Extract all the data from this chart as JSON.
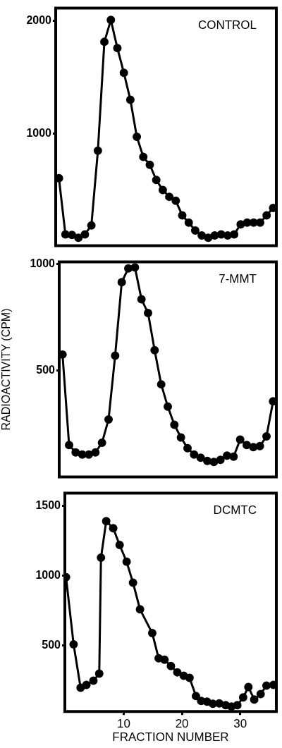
{
  "chart_data": [
    {
      "type": "line",
      "title": "CONTROL",
      "marker": "circle",
      "line_style": "solid",
      "grid": false,
      "tick_labels": "y",
      "ylim": [
        0,
        2115
      ],
      "yticks": [
        1000,
        2000
      ],
      "categories": [
        null,
        null,
        null,
        null,
        null,
        null,
        null,
        null,
        null,
        null,
        null,
        null,
        null,
        null,
        null,
        null,
        null,
        null,
        null,
        null,
        null,
        null,
        null,
        null,
        null,
        null,
        null,
        null,
        null,
        null,
        null,
        null,
        null,
        null
      ],
      "series": [
        {
          "color": "#000000",
          "values": [
            600,
            100,
            95,
            70,
            100,
            180,
            845,
            1815,
            2010,
            1760,
            1540,
            1300,
            970,
            790,
            720,
            585,
            495,
            435,
            400,
            270,
            205,
            135,
            90,
            70,
            90,
            100,
            90,
            100,
            190,
            205,
            205,
            205,
            270,
            335
          ]
        }
      ]
    },
    {
      "type": "line",
      "title": "7-MMT",
      "ylabel": "RADIOACTIVITY (CPM)",
      "marker": "circle",
      "line_style": "solid",
      "grid": false,
      "tick_labels": "y",
      "ylim": [
        0,
        1010
      ],
      "yticks": [
        500,
        1000
      ],
      "categories": [
        null,
        null,
        null,
        null,
        null,
        null,
        null,
        null,
        null,
        null,
        null,
        null,
        null,
        null,
        null,
        null,
        null,
        null,
        null,
        null,
        null,
        null,
        null,
        null,
        null,
        null,
        null,
        null,
        null,
        null,
        null,
        null,
        null
      ],
      "series": [
        {
          "color": "#000000",
          "values": [
            575,
            150,
            115,
            105,
            105,
            115,
            160,
            270,
            570,
            915,
            980,
            985,
            835,
            770,
            595,
            435,
            330,
            245,
            185,
            135,
            105,
            90,
            75,
            70,
            80,
            100,
            95,
            175,
            150,
            140,
            145,
            190,
            355
          ]
        }
      ]
    },
    {
      "type": "line",
      "title": "DCMTC",
      "xlabel": "FRACTION NUMBER",
      "marker": "circle",
      "line_style": "solid",
      "grid": false,
      "xlim": [
        -0.1,
        36.2
      ],
      "xticks": [
        10,
        20,
        30
      ],
      "ylim": [
        30,
        1590
      ],
      "yticks": [
        500,
        1000,
        1500
      ],
      "series": [
        {
          "color": "#000000",
          "x": [
            0.1,
            1.4,
            2.6,
            3.6,
            4.8,
            5.8,
            6.1,
            7.0,
            8.2,
            9.3,
            10.5,
            11.6,
            12.8,
            14.9,
            16.0,
            17.0,
            18.1,
            19.2,
            20.3,
            21.3,
            22.4,
            23.3,
            24.3,
            25.3,
            26.4,
            27.5,
            28.5,
            29.5,
            30.5,
            31.4,
            32.4,
            33.5,
            34.5,
            35.7
          ],
          "values": [
            990,
            510,
            200,
            220,
            250,
            300,
            1130,
            1390,
            1340,
            1220,
            1100,
            950,
            760,
            590,
            410,
            400,
            355,
            310,
            285,
            270,
            140,
            105,
            100,
            85,
            88,
            75,
            65,
            75,
            130,
            205,
            115,
            155,
            215,
            220
          ]
        }
      ]
    }
  ]
}
